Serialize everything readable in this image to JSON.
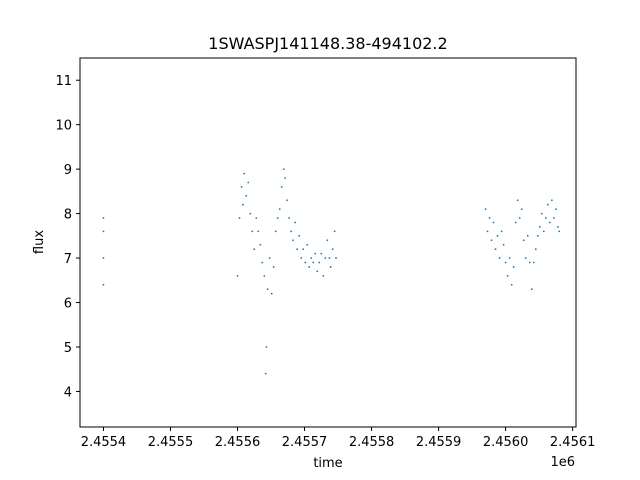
{
  "chart_data": {
    "type": "scatter",
    "title": "1SWASPJ141148.38-494102.2",
    "xlabel": "time",
    "ylabel": "flux",
    "x_offset_label": "1e6",
    "x_scale": 1000000,
    "xlim": [
      2455365,
      2456105
    ],
    "ylim": [
      3.2,
      11.5
    ],
    "xticks": [
      2455400,
      2455500,
      2455600,
      2455700,
      2455800,
      2455900,
      2456000,
      2456100
    ],
    "xtick_labels": [
      "2.4554",
      "2.4555",
      "2.4556",
      "2.4557",
      "2.4558",
      "2.4559",
      "2.4560",
      "2.4561"
    ],
    "yticks": [
      4,
      5,
      6,
      7,
      8,
      9,
      10,
      11
    ],
    "ytick_labels": [
      "4",
      "5",
      "6",
      "7",
      "8",
      "9",
      "10",
      "11"
    ],
    "grid": false,
    "marker_color": "#1f77b4",
    "series": [
      {
        "points": [
          [
            2455400,
            7.6
          ],
          [
            2455400,
            7.0
          ],
          [
            2455400,
            7.9
          ],
          [
            2455400,
            6.4
          ],
          [
            2455600,
            6.6
          ],
          [
            2455603,
            7.9
          ],
          [
            2455606,
            8.6
          ],
          [
            2455608,
            8.2
          ],
          [
            2455610,
            8.9
          ],
          [
            2455613,
            8.4
          ],
          [
            2455616,
            8.7
          ],
          [
            2455619,
            8.0
          ],
          [
            2455622,
            7.6
          ],
          [
            2455625,
            7.2
          ],
          [
            2455628,
            7.9
          ],
          [
            2455631,
            7.6
          ],
          [
            2455634,
            7.3
          ],
          [
            2455637,
            6.9
          ],
          [
            2455640,
            6.6
          ],
          [
            2455642,
            4.4
          ],
          [
            2455643,
            5.0
          ],
          [
            2455645,
            6.3
          ],
          [
            2455648,
            7.0
          ],
          [
            2455651,
            6.2
          ],
          [
            2455654,
            6.8
          ],
          [
            2455657,
            7.6
          ],
          [
            2455660,
            7.9
          ],
          [
            2455663,
            8.1
          ],
          [
            2455666,
            8.6
          ],
          [
            2455669,
            9.0
          ],
          [
            2455671,
            8.8
          ],
          [
            2455674,
            8.3
          ],
          [
            2455677,
            7.9
          ],
          [
            2455680,
            7.6
          ],
          [
            2455683,
            7.4
          ],
          [
            2455686,
            7.8
          ],
          [
            2455689,
            7.2
          ],
          [
            2455692,
            7.5
          ],
          [
            2455695,
            7.0
          ],
          [
            2455698,
            7.2
          ],
          [
            2455701,
            6.9
          ],
          [
            2455704,
            7.3
          ],
          [
            2455707,
            6.8
          ],
          [
            2455710,
            7.0
          ],
          [
            2455713,
            6.9
          ],
          [
            2455716,
            7.1
          ],
          [
            2455719,
            6.7
          ],
          [
            2455722,
            6.9
          ],
          [
            2455725,
            7.1
          ],
          [
            2455728,
            6.6
          ],
          [
            2455731,
            7.0
          ],
          [
            2455734,
            7.4
          ],
          [
            2455737,
            7.0
          ],
          [
            2455739,
            6.8
          ],
          [
            2455742,
            7.2
          ],
          [
            2455745,
            7.6
          ],
          [
            2455747,
            7.0
          ],
          [
            2455970,
            8.1
          ],
          [
            2455973,
            7.6
          ],
          [
            2455976,
            7.9
          ],
          [
            2455979,
            7.4
          ],
          [
            2455982,
            7.8
          ],
          [
            2455985,
            7.2
          ],
          [
            2455988,
            7.5
          ],
          [
            2455991,
            7.0
          ],
          [
            2455994,
            7.6
          ],
          [
            2455997,
            7.3
          ],
          [
            2456000,
            6.9
          ],
          [
            2456003,
            6.6
          ],
          [
            2456006,
            7.0
          ],
          [
            2456009,
            6.4
          ],
          [
            2456012,
            6.8
          ],
          [
            2456015,
            7.8
          ],
          [
            2456018,
            8.3
          ],
          [
            2456021,
            7.9
          ],
          [
            2456024,
            8.1
          ],
          [
            2456027,
            7.4
          ],
          [
            2456030,
            7.0
          ],
          [
            2456033,
            7.5
          ],
          [
            2456036,
            6.9
          ],
          [
            2456039,
            6.3
          ],
          [
            2456042,
            6.9
          ],
          [
            2456045,
            7.2
          ],
          [
            2456048,
            7.5
          ],
          [
            2456051,
            7.7
          ],
          [
            2456054,
            8.0
          ],
          [
            2456057,
            7.6
          ],
          [
            2456060,
            7.9
          ],
          [
            2456063,
            8.2
          ],
          [
            2456066,
            7.8
          ],
          [
            2456069,
            8.3
          ],
          [
            2456072,
            7.9
          ],
          [
            2456075,
            8.1
          ],
          [
            2456078,
            7.7
          ],
          [
            2456080,
            7.6
          ]
        ]
      }
    ]
  }
}
